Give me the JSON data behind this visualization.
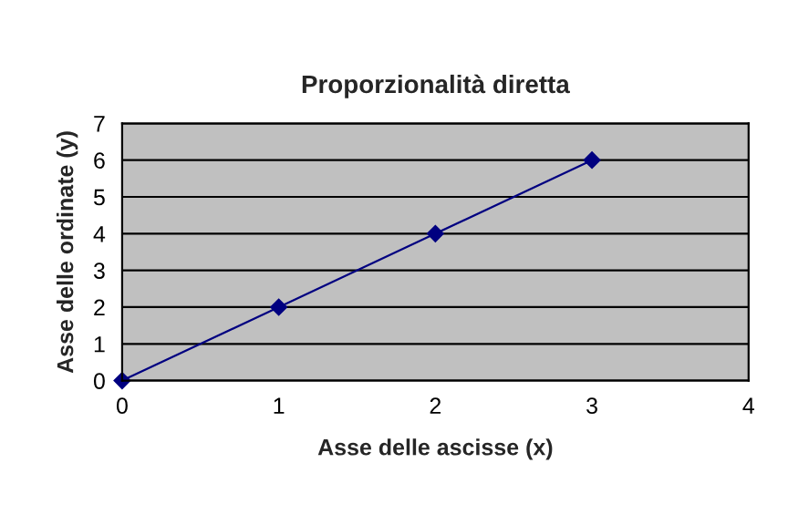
{
  "chart_data": {
    "type": "line",
    "title": "Proporzionalità diretta",
    "xlabel": "Asse delle ascisse (x)",
    "ylabel": "Asse delle ordinate (y)",
    "x": [
      0,
      1,
      2,
      3
    ],
    "series": [
      {
        "color": "#000080",
        "values": [
          0,
          2,
          4,
          6
        ]
      }
    ],
    "xlim": [
      0,
      4
    ],
    "xticks": [
      0,
      1,
      2,
      3,
      4
    ],
    "ylim": [
      0,
      7
    ],
    "yticks": [
      0,
      1,
      2,
      3,
      4,
      5,
      6,
      7
    ],
    "grid": "y",
    "marker": "diamond",
    "line_style": "solid",
    "legend": false
  }
}
